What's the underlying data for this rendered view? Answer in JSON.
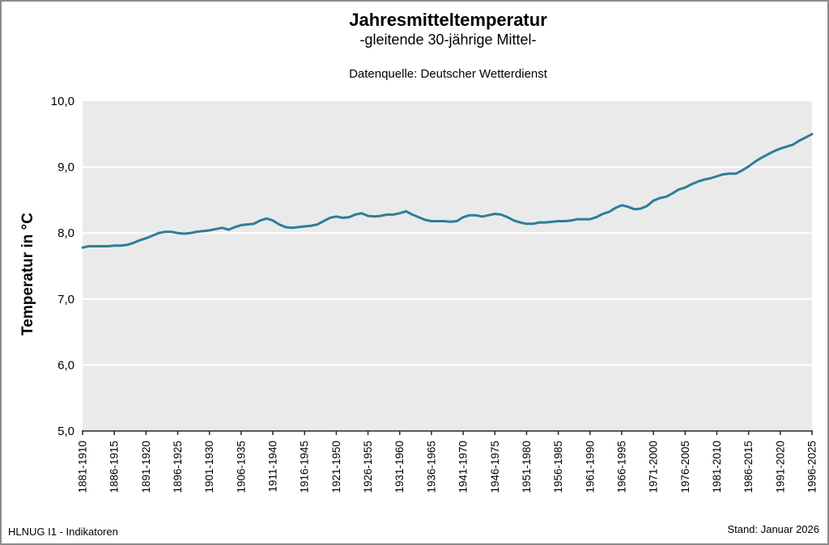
{
  "header": {
    "title": "Jahresmitteltemperatur",
    "subtitle": "-gleitende 30-jährige Mittel-",
    "source": "Datenquelle: Deutscher Wetterdienst"
  },
  "footer": {
    "left": "HLNUG I1 - Indikatoren",
    "right": "Stand: Januar 2026"
  },
  "chart_data": {
    "type": "line",
    "title": "Jahresmitteltemperatur",
    "subtitle": "-gleitende 30-jährige Mittel-",
    "source": "Datenquelle: Deutscher Wetterdienst",
    "xlabel": "",
    "ylabel": "Temperatur in °C",
    "ylim": [
      5.0,
      10.0
    ],
    "y_tick_values": [
      5,
      6,
      7,
      8,
      9,
      10
    ],
    "y_tick_labels": [
      "5,0",
      "6,0",
      "7,0",
      "8,0",
      "9,0",
      "10,0"
    ],
    "grid": "horizontal-white",
    "legend": "none",
    "plot_bg_color": "#eaeaea",
    "gridline_color": "#ffffff",
    "line_color": "#2e7e97",
    "line_width": 3,
    "x_start_year": 1881,
    "x_window_years": 30,
    "x_label_every": 5,
    "x_tick_labels": [
      "1881-1910",
      "1886-1915",
      "1891-1920",
      "1896-1925",
      "1901-1930",
      "1906-1935",
      "1911-1940",
      "1916-1945",
      "1921-1950",
      "1926-1955",
      "1931-1960",
      "1936-1965",
      "1941-1970",
      "1946-1975",
      "1951-1980",
      "1956-1985",
      "1961-1990",
      "1966-1995",
      "1971-2000",
      "1976-2005",
      "1981-2010",
      "1986-2015",
      "1991-2020",
      "1996-2025"
    ],
    "series": [
      {
        "name": "Gleitendes 30-jähriges Mittel der Jahresmitteltemperatur (°C)",
        "values": [
          7.78,
          7.8,
          7.8,
          7.8,
          7.8,
          7.81,
          7.81,
          7.82,
          7.85,
          7.89,
          7.92,
          7.96,
          8.0,
          8.02,
          8.02,
          8.0,
          7.99,
          8.0,
          8.02,
          8.03,
          8.04,
          8.06,
          8.08,
          8.05,
          8.09,
          8.12,
          8.13,
          8.14,
          8.19,
          8.22,
          8.19,
          8.13,
          8.09,
          8.08,
          8.09,
          8.1,
          8.11,
          8.13,
          8.18,
          8.23,
          8.25,
          8.23,
          8.24,
          8.28,
          8.3,
          8.26,
          8.25,
          8.26,
          8.28,
          8.28,
          8.3,
          8.33,
          8.28,
          8.24,
          8.2,
          8.18,
          8.18,
          8.18,
          8.17,
          8.18,
          8.24,
          8.27,
          8.27,
          8.25,
          8.27,
          8.29,
          8.28,
          8.24,
          8.19,
          8.16,
          8.14,
          8.14,
          8.16,
          8.16,
          8.17,
          8.18,
          8.18,
          8.19,
          8.21,
          8.21,
          8.21,
          8.24,
          8.29,
          8.32,
          8.38,
          8.42,
          8.4,
          8.36,
          8.37,
          8.41,
          8.49,
          8.53,
          8.55,
          8.6,
          8.66,
          8.69,
          8.74,
          8.78,
          8.81,
          8.83,
          8.86,
          8.89,
          8.9,
          8.9,
          8.95,
          9.01,
          9.08,
          9.14,
          9.19,
          9.24,
          9.28,
          9.31,
          9.34,
          9.4,
          9.45,
          9.5
        ]
      }
    ]
  }
}
